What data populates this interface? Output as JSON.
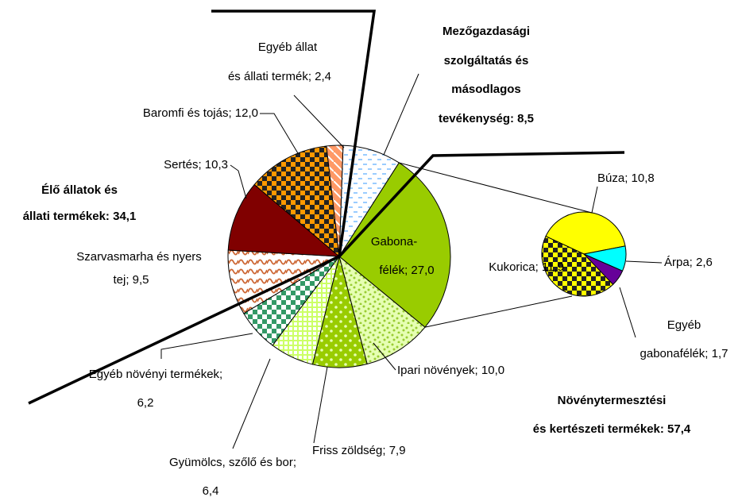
{
  "chart_data": {
    "type": "pie",
    "values": [
      8.5,
      27.0,
      10.0,
      7.9,
      6.4,
      6.2,
      9.5,
      10.3,
      12.0,
      2.4
    ],
    "value_labels": [
      [
        "Mezőgazdasági",
        "szolgáltatás és",
        "másodlagos",
        "tevékenység: 8,5"
      ],
      [
        "Gabona-",
        "félék; 27,0"
      ],
      [
        "Ipari növények; 10,0"
      ],
      [
        "Friss zöldség; 7,9"
      ],
      [
        "Gyümölcs, szőlő és bor;",
        "6,4"
      ],
      [
        "Egyéb növényi termékek;",
        "6,2"
      ],
      [
        "Szarvasmarha és nyers",
        "tej; 9,5"
      ],
      [
        "Sertés; 10,3"
      ],
      [
        "Baromfi és tojás; 12,0"
      ],
      [
        "Egyéb állat",
        "és állati termék; 2,4"
      ]
    ],
    "colors": [
      "#99ccff",
      "#99cc00",
      "#99cc33",
      "#99cc00",
      "#ccff66",
      "#339966",
      "#cc6633",
      "#800000",
      "#ff9900",
      "#ff9966"
    ],
    "secondary": {
      "values": [
        10.8,
        2.6,
        1.7,
        11.9
      ],
      "value_labels": [
        [
          "Búza; 10,8"
        ],
        [
          "Árpa; 2,6"
        ],
        [
          "Egyéb",
          "gabonafélék; 1,7"
        ],
        [
          "Kukorica; 11,9"
        ]
      ],
      "colors": [
        "#ffff00",
        "#00ffff",
        "#660099",
        "#ffff00"
      ]
    },
    "group_labels": [
      [
        "Élő állatok és",
        "állati termékek:  34,1"
      ],
      [
        "Növénytermesztési",
        "és kertészeti termékek:  57,4"
      ]
    ]
  }
}
